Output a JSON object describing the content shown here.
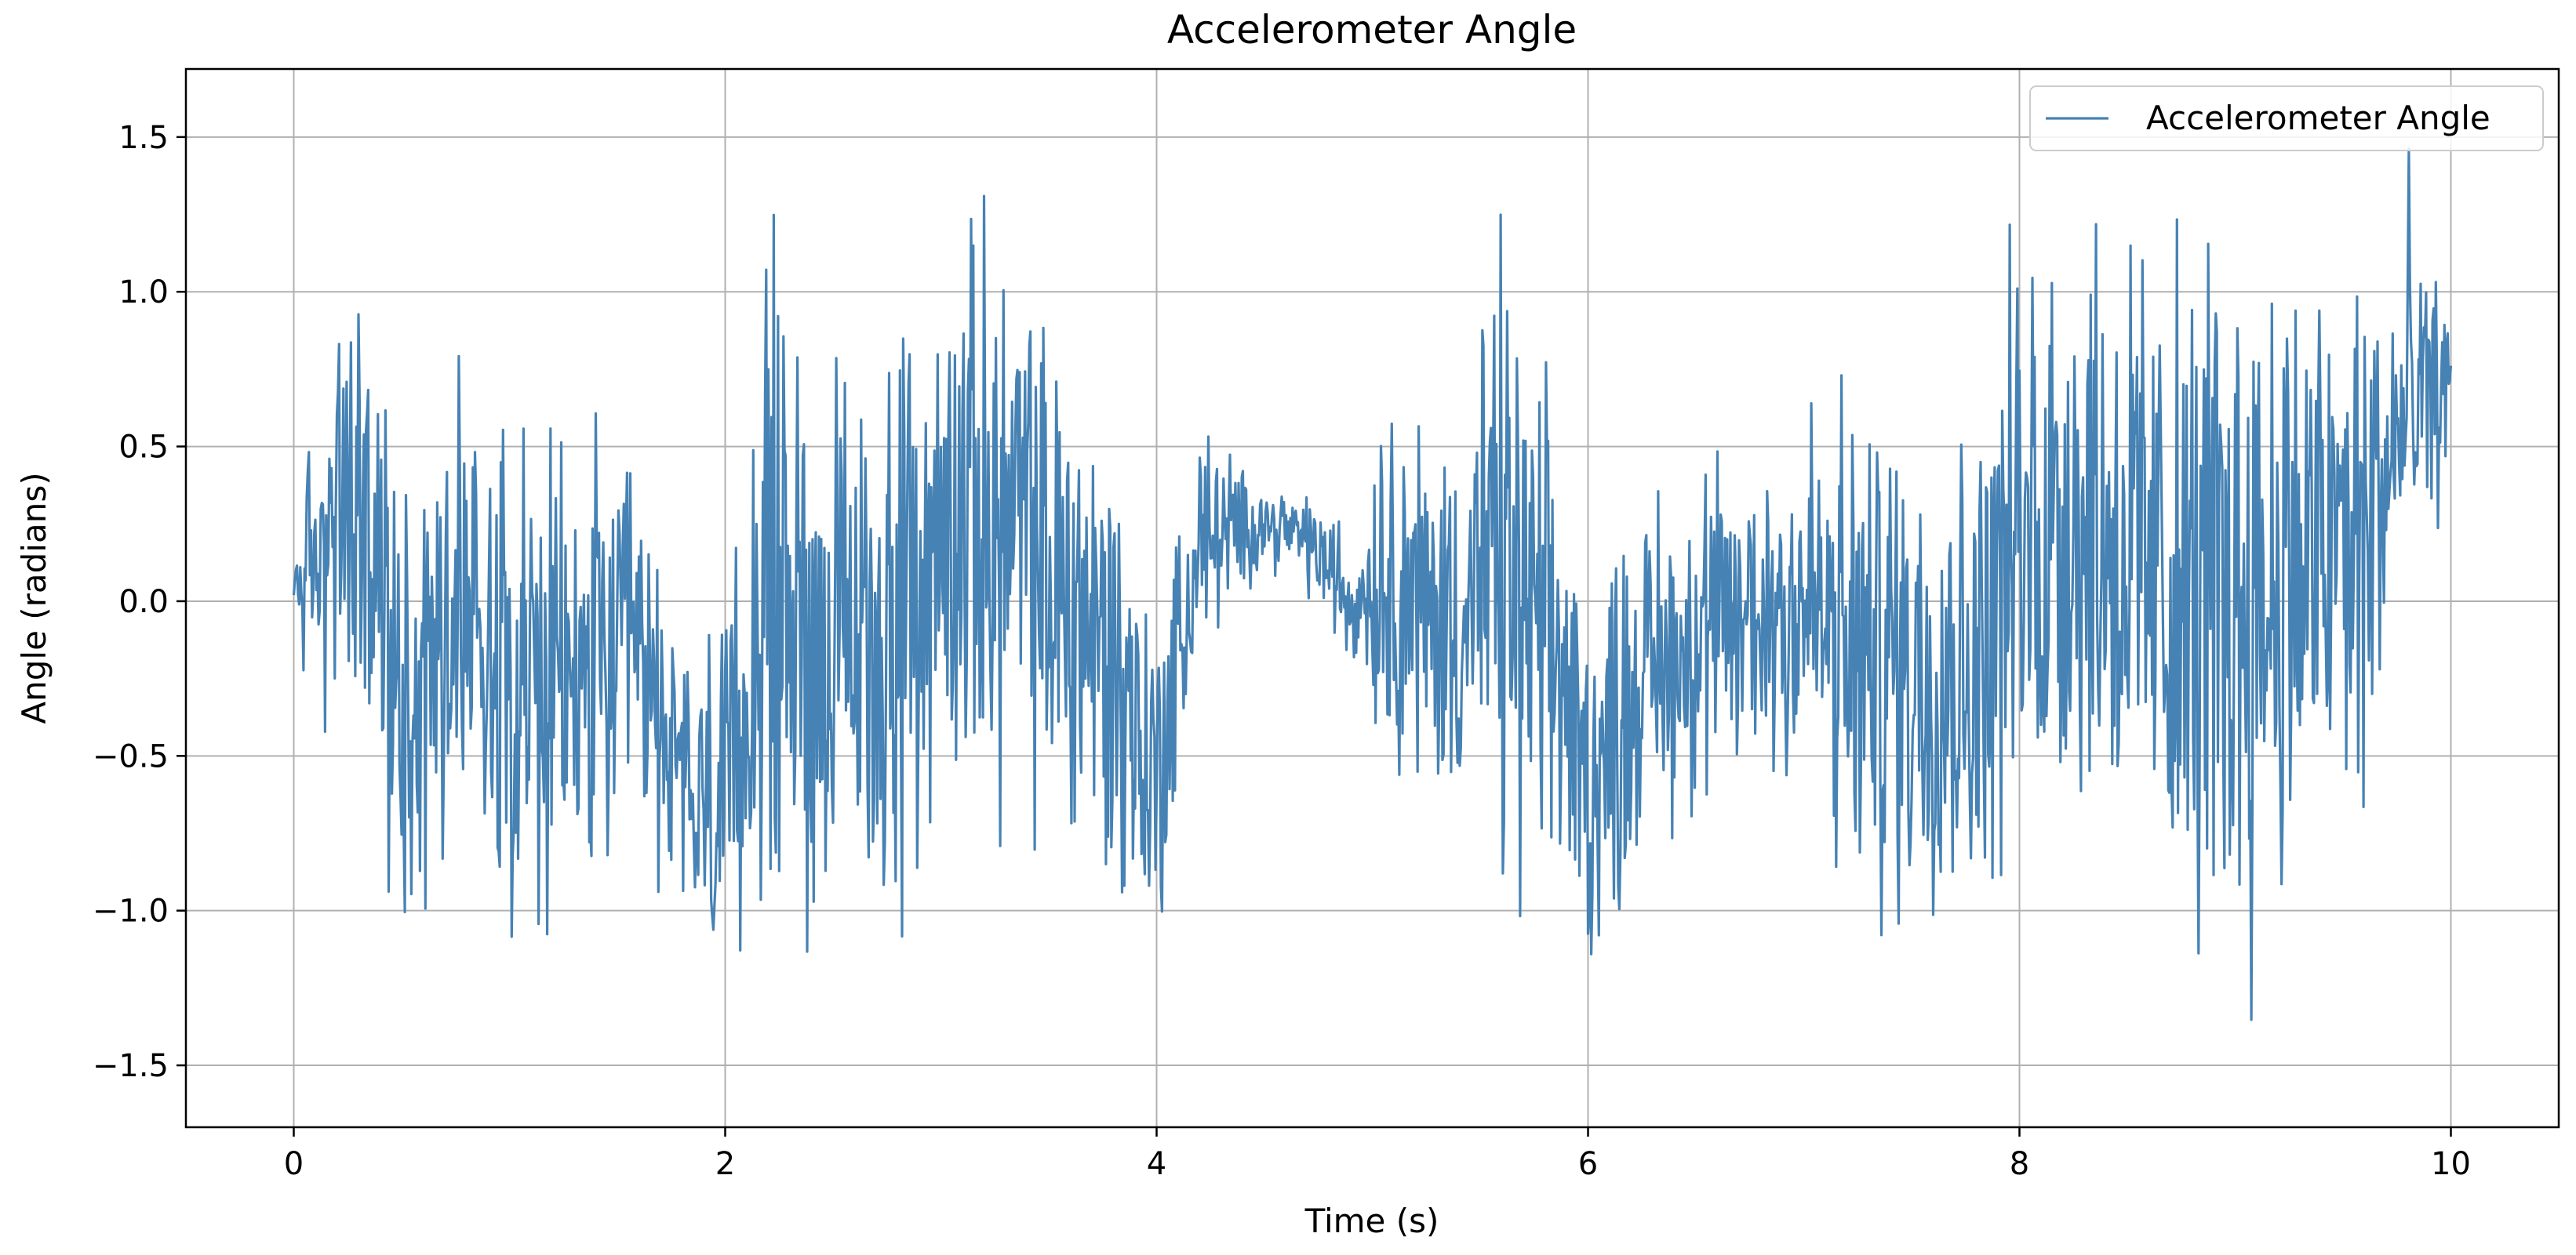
{
  "chart_data": {
    "type": "line",
    "title": "Accelerometer Angle",
    "xlabel": "Time (s)",
    "ylabel": "Angle (radians)",
    "xlim": [
      -0.5,
      10.5
    ],
    "ylim": [
      -1.7,
      1.72
    ],
    "xticks": [
      0,
      2,
      4,
      6,
      8,
      10
    ],
    "xtick_labels": [
      "0",
      "2",
      "4",
      "6",
      "8",
      "10"
    ],
    "yticks": [
      1.5,
      1.0,
      0.5,
      0.0,
      -0.5,
      -1.0,
      -1.5
    ],
    "ytick_labels": [
      "1.5",
      "1.0",
      "0.5",
      "0.0",
      "−0.5",
      "−1.0",
      "−1.5"
    ],
    "grid": true,
    "legend_position": "top-right",
    "series": [
      {
        "name": "Accelerometer Angle",
        "color": "#4682b4",
        "x_start": 0,
        "x_end": 10,
        "envelope_times": [
          0,
          0.3,
          0.5,
          0.8,
          1.2,
          1.6,
          1.8,
          2.0,
          2.2,
          2.5,
          2.8,
          3.1,
          3.4,
          3.8,
          4.0,
          4.2,
          4.5,
          4.7,
          4.9,
          5.1,
          5.3,
          5.6,
          5.85,
          6.0,
          6.3,
          6.6,
          7.0,
          7.2,
          7.5,
          7.8,
          8.0,
          8.3,
          8.7,
          9.0,
          9.3,
          9.6,
          9.8,
          10.0
        ],
        "envelope_centers": [
          0.05,
          0.3,
          -0.3,
          0.0,
          -0.3,
          -0.2,
          -0.6,
          -0.7,
          0.1,
          -0.2,
          -0.1,
          0.3,
          0.2,
          -0.2,
          -0.6,
          0.2,
          0.25,
          0.2,
          0.0,
          0.1,
          -0.1,
          0.1,
          -0.2,
          -0.6,
          -0.2,
          -0.1,
          0.0,
          -0.2,
          -0.2,
          -0.2,
          0.2,
          0.3,
          0.0,
          0.0,
          0.1,
          0.2,
          0.6,
          0.7
        ],
        "envelope_amplitudes": [
          0.3,
          1.1,
          0.9,
          1.1,
          1.0,
          0.9,
          0.6,
          0.8,
          1.3,
          1.1,
          1.1,
          1.2,
          1.1,
          1.0,
          0.7,
          0.5,
          0.15,
          0.2,
          0.3,
          0.8,
          0.7,
          1.3,
          0.9,
          0.8,
          0.7,
          0.7,
          0.8,
          1.1,
          1.1,
          1.0,
          1.3,
          1.3,
          1.4,
          1.5,
          1.3,
          1.2,
          0.9,
          0.3
        ]
      }
    ]
  }
}
